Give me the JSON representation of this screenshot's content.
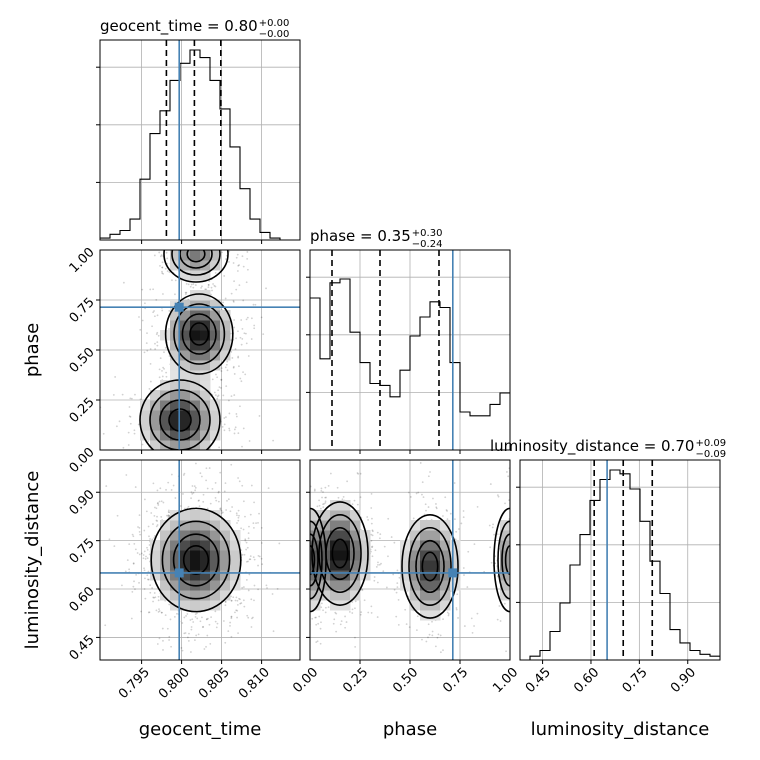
{
  "chart_data": {
    "type": "corner",
    "colors": {
      "truth": "#4682b4",
      "hist": "#000000",
      "grid": "#b0b0b0"
    },
    "parameters": [
      {
        "name": "geocent_time",
        "label": "geocent_time",
        "title_prefix": "geocent_time = 0.80",
        "title_plus": "+0.00",
        "title_minus": "−0.00",
        "range": [
          0.7898,
          0.8148
        ],
        "ticks": [
          0.795,
          0.8,
          0.805,
          0.81
        ],
        "tick_labels": [
          "0.795",
          "0.800",
          "0.805",
          "0.810"
        ],
        "truth": 0.7997,
        "quantiles": [
          0.7981,
          0.8016,
          0.8049
        ],
        "hist": {
          "edges_start": 0.7898,
          "bin_width": 0.00125,
          "counts": [
            0.01,
            0.03,
            0.05,
            0.11,
            0.32,
            0.56,
            0.68,
            0.84,
            0.93,
            1.0,
            0.96,
            0.84,
            0.69,
            0.49,
            0.27,
            0.11,
            0.04,
            0.01,
            0.0,
            0.0
          ]
        }
      },
      {
        "name": "phase",
        "label": "phase",
        "title_prefix": "phase = 0.35",
        "title_plus": "+0.30",
        "title_minus": "−0.24",
        "range": [
          0.0,
          1.0
        ],
        "ticks": [
          0.25,
          0.5,
          0.75,
          1.0
        ],
        "tick_labels": [
          "0.25",
          "0.50",
          "0.75",
          "1.00"
        ],
        "y_tick_labels": [
          "0.00",
          "0.25",
          "0.50",
          "0.75",
          "1.00"
        ],
        "y_ticks": [
          0.0,
          0.25,
          0.5,
          0.75,
          1.0
        ],
        "truth": 0.714,
        "quantiles": [
          0.11,
          0.35,
          0.645
        ],
        "hist": {
          "edges_start": 0.0,
          "bin_width": 0.05,
          "counts": [
            0.8,
            0.48,
            0.88,
            0.9,
            0.62,
            0.46,
            0.35,
            0.34,
            0.28,
            0.42,
            0.6,
            0.7,
            0.78,
            0.75,
            0.46,
            0.2,
            0.18,
            0.18,
            0.24,
            0.3
          ]
        }
      },
      {
        "name": "luminosity_distance",
        "label": "luminosity_distance",
        "title_prefix": "luminosity_distance = 0.70",
        "title_plus": "+0.09",
        "title_minus": "−0.09",
        "range": [
          0.38,
          1.0
        ],
        "ticks": [
          0.45,
          0.6,
          0.75,
          0.9
        ],
        "tick_labels": [
          "0.45",
          "0.60",
          "0.75",
          "0.90"
        ],
        "y_tick_labels": [
          "0.45",
          "0.60",
          "0.75",
          "0.90"
        ],
        "truth": 0.65,
        "quantiles": [
          0.61,
          0.7,
          0.79
        ],
        "hist": {
          "edges_start": 0.38,
          "bin_width": 0.031,
          "counts": [
            0.0,
            0.02,
            0.05,
            0.15,
            0.3,
            0.5,
            0.66,
            0.84,
            0.95,
            1.0,
            0.98,
            0.9,
            0.73,
            0.52,
            0.35,
            0.16,
            0.09,
            0.05,
            0.03,
            0.02
          ]
        }
      }
    ],
    "blobs_2d": [
      {
        "x": "geocent_time",
        "y": "phase",
        "modes": [
          {
            "cx": 0.8022,
            "cy": 0.58,
            "sx": 0.0021,
            "sy": 0.1,
            "w": 1.0
          },
          {
            "cx": 0.7998,
            "cy": 0.15,
            "sx": 0.0025,
            "sy": 0.1,
            "w": 0.95
          },
          {
            "cx": 0.8018,
            "cy": 0.98,
            "sx": 0.002,
            "sy": 0.07,
            "w": 0.55
          }
        ]
      },
      {
        "x": "geocent_time",
        "y": "luminosity_distance",
        "modes": [
          {
            "cx": 0.8018,
            "cy": 0.69,
            "sx": 0.0028,
            "sy": 0.08,
            "w": 1.0
          }
        ]
      },
      {
        "x": "phase",
        "y": "luminosity_distance",
        "modes": [
          {
            "cx": 0.15,
            "cy": 0.71,
            "sx": 0.07,
            "sy": 0.08,
            "w": 1.0
          },
          {
            "cx": 0.6,
            "cy": 0.67,
            "sx": 0.07,
            "sy": 0.08,
            "w": 0.85
          },
          {
            "cx": 0.0,
            "cy": 0.69,
            "sx": 0.04,
            "sy": 0.08,
            "w": 0.6
          },
          {
            "cx": 1.0,
            "cy": 0.69,
            "sx": 0.04,
            "sy": 0.08,
            "w": 0.5
          }
        ]
      }
    ]
  }
}
